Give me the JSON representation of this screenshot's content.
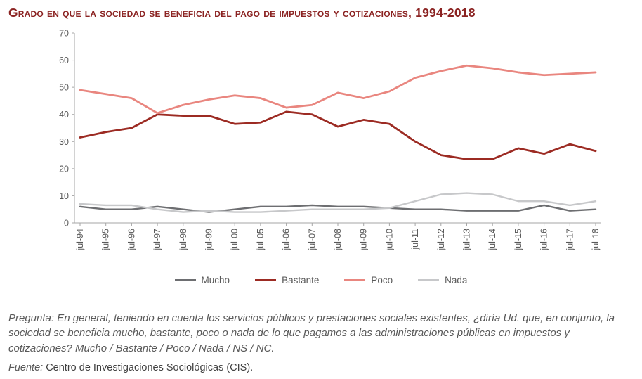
{
  "header": {
    "title": "Grado en que la sociedad se beneficia del pago de impuestos y cotizaciones, 1994-2018"
  },
  "chart_data": {
    "type": "line",
    "title": "Grado en que la sociedad se beneficia del pago de impuestos y cotizaciones, 1994-2018",
    "categories": [
      "jul-94",
      "jul-95",
      "jul-96",
      "jul-97",
      "jul-98",
      "jul-99",
      "jul-00",
      "jul-05",
      "jul-06",
      "jul-07",
      "jul-08",
      "jul-09",
      "jul-10",
      "jul-11",
      "jul-12",
      "jul-13",
      "jul-14",
      "jul-15",
      "jul-16",
      "jul-17",
      "jul-18"
    ],
    "series": [
      {
        "name": "Mucho",
        "color": "#6d6e71",
        "values": [
          6,
          5,
          5,
          6,
          5,
          4,
          5,
          6,
          6,
          6.5,
          6,
          6,
          5.5,
          5,
          5,
          4.5,
          4.5,
          4.5,
          6.5,
          4.5,
          5
        ]
      },
      {
        "name": "Bastante",
        "color": "#9c2b23",
        "values": [
          31.5,
          33.5,
          35,
          40,
          39.5,
          39.5,
          36.5,
          37,
          41,
          40,
          35.5,
          38,
          36.5,
          30,
          25,
          23.5,
          23.5,
          27.5,
          25.5,
          29,
          26.5
        ]
      },
      {
        "name": "Poco",
        "color": "#e9867f",
        "values": [
          49,
          47.5,
          46,
          40.5,
          43.5,
          45.5,
          47,
          46,
          42.5,
          43.5,
          48,
          46,
          48.5,
          53.5,
          56,
          58,
          57,
          55.5,
          54.5,
          55,
          55.5
        ]
      },
      {
        "name": "Nada",
        "color": "#c7c8ca",
        "values": [
          7,
          6.5,
          6.5,
          5,
          4,
          4.5,
          4,
          4,
          4.5,
          5,
          5,
          5,
          5.5,
          8,
          10.5,
          11,
          10.5,
          8,
          8,
          6.5,
          8
        ]
      }
    ],
    "xlabel": "",
    "ylabel": "",
    "ylim": [
      0,
      70
    ],
    "yticks": [
      0,
      10,
      20,
      30,
      40,
      50,
      60,
      70
    ],
    "grid": false,
    "legend_position": "bottom",
    "axis_color": "#a6a6a6",
    "tick_label_color": "#595959"
  },
  "footer": {
    "question_label": "Pregunta:",
    "question_text": " En general, teniendo en cuenta los servicios públicos y prestaciones sociales existentes, ¿diría Ud. que, en conjunto, la sociedad se beneficia mucho, bastante, poco o nada de lo que pagamos a las administraciones públicas en impuestos y cotizaciones? Mucho / Bastante / Poco / Nada / NS / NC.",
    "source_label": "Fuente:",
    "source_text": " Centro de Investigaciones Sociológicas (CIS)."
  }
}
